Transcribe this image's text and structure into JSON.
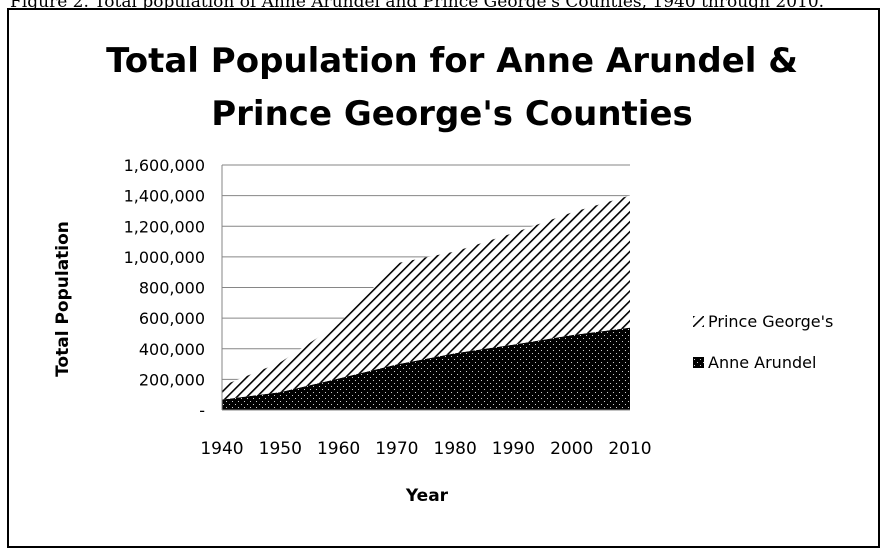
{
  "caption": "Figure 2. Total population of Anne Arundel and Prince George's Counties, 1940 through 2010.",
  "chart_data": {
    "type": "area",
    "stacked": true,
    "title_lines": [
      "Total Population for Anne Arundel &",
      "Prince George's Counties"
    ],
    "xlabel": "Year",
    "ylabel": "Total Population",
    "categories": [
      "1940",
      "1950",
      "1960",
      "1970",
      "1980",
      "1990",
      "2000",
      "2010"
    ],
    "ylim": [
      0,
      1600000
    ],
    "yticks": [
      0,
      200000,
      400000,
      600000,
      800000,
      1000000,
      1200000,
      1400000,
      1600000
    ],
    "ytick_labels": [
      "-",
      "200,000",
      "400,000",
      "600,000",
      "800,000",
      "1,000,000",
      "1,200,000",
      "1,400,000",
      "1,600,000"
    ],
    "grid": "horizontal",
    "legend_position": "right",
    "series": [
      {
        "name": "Anne Arundel",
        "pattern": "dots",
        "values": [
          68000,
          117000,
          206000,
          298000,
          370000,
          427000,
          489000,
          538000
        ]
      },
      {
        "name": "Prince George's",
        "pattern": "diagonal-stripes",
        "values": [
          89000,
          194000,
          357000,
          661000,
          665000,
          729000,
          801000,
          863000
        ]
      }
    ],
    "colors": {
      "fill": "#000000",
      "background": "#ffffff",
      "grid": "#868686"
    }
  }
}
